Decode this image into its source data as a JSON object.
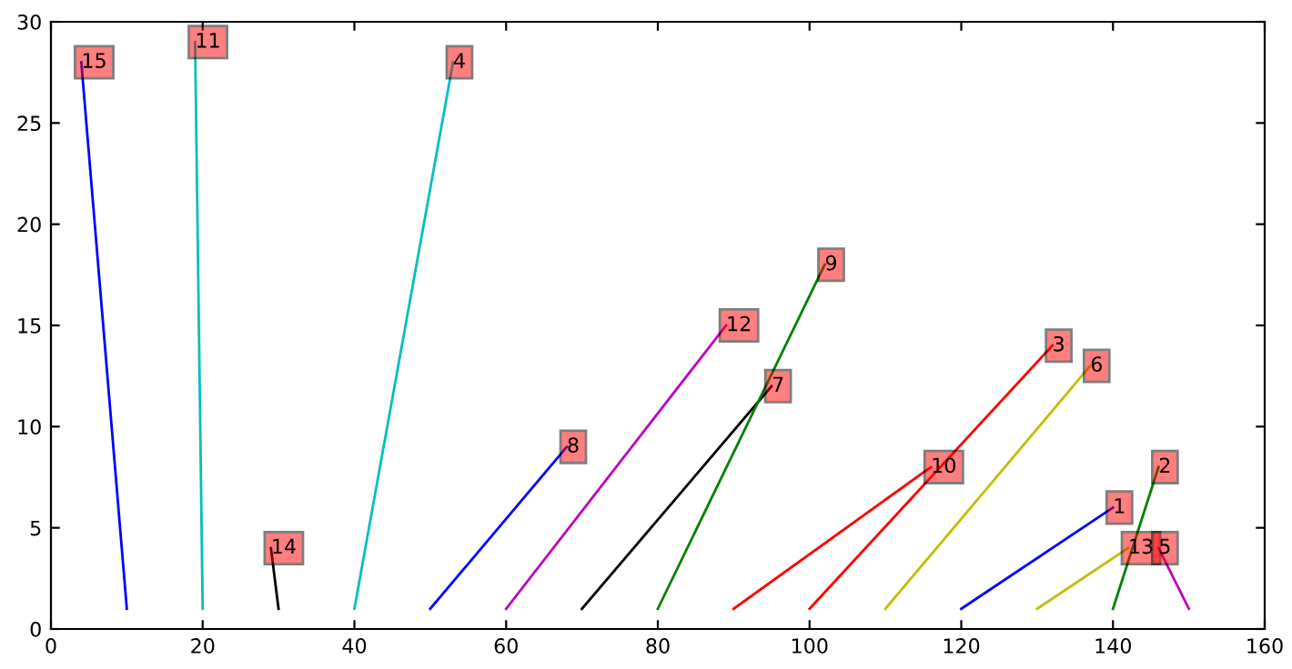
{
  "chart_data": {
    "type": "line",
    "xlim": [
      0,
      160
    ],
    "ylim": [
      0,
      30
    ],
    "xticks": [
      0,
      20,
      40,
      60,
      80,
      100,
      120,
      140,
      160
    ],
    "yticks": [
      0,
      5,
      10,
      15,
      20,
      25,
      30
    ],
    "grid": false,
    "legend": false,
    "series": [
      {
        "color": "#0000ff",
        "x": [
          10,
          4
        ],
        "values": [
          1,
          28
        ]
      },
      {
        "color": "#00bfbf",
        "x": [
          20,
          19
        ],
        "values": [
          1,
          29
        ]
      },
      {
        "color": "#000000",
        "x": [
          30,
          29
        ],
        "values": [
          1,
          4
        ]
      },
      {
        "color": "#00bfbf",
        "x": [
          40,
          53
        ],
        "values": [
          1,
          28
        ]
      },
      {
        "color": "#0000ff",
        "x": [
          50,
          68
        ],
        "values": [
          1,
          9
        ]
      },
      {
        "color": "#bf00bf",
        "x": [
          60,
          89
        ],
        "values": [
          1,
          15
        ]
      },
      {
        "color": "#000000",
        "x": [
          70,
          95
        ],
        "values": [
          1,
          12
        ]
      },
      {
        "color": "#008000",
        "x": [
          80,
          102
        ],
        "values": [
          1,
          18
        ]
      },
      {
        "color": "#ff0000",
        "x": [
          90,
          116
        ],
        "values": [
          1,
          8
        ]
      },
      {
        "color": "#ff0000",
        "x": [
          100,
          132
        ],
        "values": [
          1,
          14
        ]
      },
      {
        "color": "#bfbf00",
        "x": [
          110,
          137
        ],
        "values": [
          1,
          13
        ]
      },
      {
        "color": "#0000ff",
        "x": [
          120,
          140
        ],
        "values": [
          1,
          6
        ]
      },
      {
        "color": "#bfbf00",
        "x": [
          130,
          142
        ],
        "values": [
          1,
          4
        ]
      },
      {
        "color": "#008000",
        "x": [
          140,
          146
        ],
        "values": [
          1,
          8
        ]
      },
      {
        "color": "#bf00bf",
        "x": [
          150,
          146
        ],
        "values": [
          1,
          4
        ]
      }
    ],
    "annotations": [
      {
        "text": "15",
        "x": 4,
        "y": 28
      },
      {
        "text": "11",
        "x": 19,
        "y": 29
      },
      {
        "text": "14",
        "x": 29,
        "y": 4
      },
      {
        "text": "4",
        "x": 53,
        "y": 28
      },
      {
        "text": "8",
        "x": 68,
        "y": 9
      },
      {
        "text": "12",
        "x": 89,
        "y": 15
      },
      {
        "text": "7",
        "x": 95,
        "y": 12
      },
      {
        "text": "9",
        "x": 102,
        "y": 18
      },
      {
        "text": "10",
        "x": 116,
        "y": 8
      },
      {
        "text": "3",
        "x": 132,
        "y": 14
      },
      {
        "text": "6",
        "x": 137,
        "y": 13
      },
      {
        "text": "1",
        "x": 140,
        "y": 6
      },
      {
        "text": "13",
        "x": 142,
        "y": 4
      },
      {
        "text": "2",
        "x": 146,
        "y": 8
      },
      {
        "text": "5",
        "x": 146,
        "y": 4
      }
    ]
  }
}
